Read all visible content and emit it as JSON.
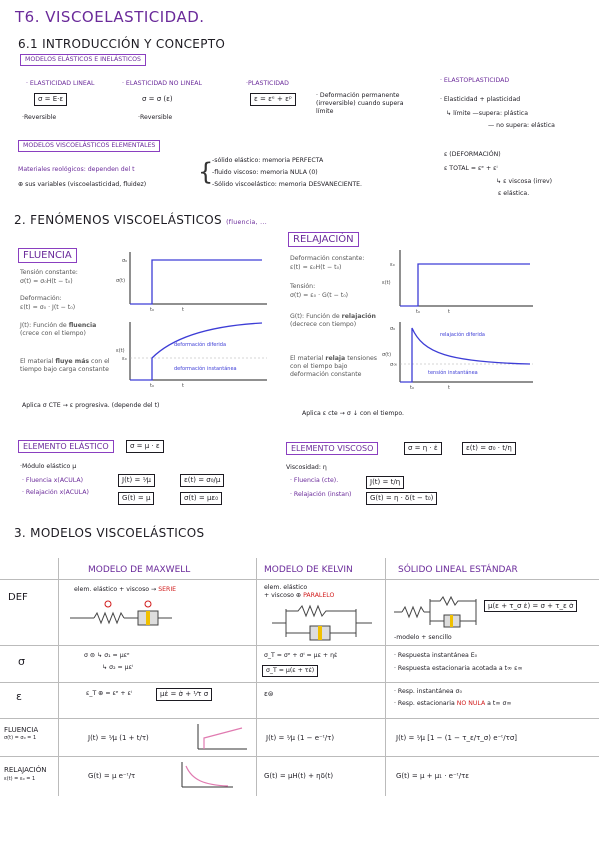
{
  "title": "T6. VISCOELASTICIDAD.",
  "s61": {
    "title": "6.1 INTRODUCCIÓN Y CONCEPTO",
    "tag": "MODELOS ELÁSTICOS E INELÁSTICOS"
  },
  "models": [
    {
      "name": "· ELASTICIDAD LINEAL",
      "formula": "σ = E·ε",
      "note": "·Reversible"
    },
    {
      "name": "· ELASTICIDAD NO LINEAL",
      "formula": "σ = σ (ε)",
      "note": "·Reversible"
    },
    {
      "name": "·PLASTICIDAD",
      "formula": "ε = εᵉ + εᵖ",
      "note": "· Deformación permanente (irreversible) cuando supera límite"
    },
    {
      "name": "· ELASTOPLASTICIDAD",
      "line1": "· Elasticidad + plasticidad",
      "line2": "↳ límite —supera: plástica",
      "line3": "— no supera: elástica"
    }
  ],
  "visco_tag": "MODELOS VISCOELÁSTICOS ELEMENTALES",
  "materials": {
    "line1": "Materiales reológicos: dependen del t",
    "line2": "⊕ sus variables (viscoelasticidad, fluidez)"
  },
  "solids": [
    "-sólido elástico: memoria PERFECTA",
    "-fluido viscoso: memoria NULA (0)",
    "-Sólido viscoelástico: memoria DESVANECIENTE."
  ],
  "deform": {
    "l1": "ε (DEFORMACIÓN)",
    "l2": "ε TOTAL = εᵉ + εⁱ",
    "l3": "↳ ε viscosa (irrev)",
    "l4": "ε elástica."
  },
  "s2": {
    "title": "2. FENÓMENOS VISCOELÁSTICOS",
    "sub": "(fluencia, ..."
  },
  "fluencia": {
    "tag": "FLUENCIA",
    "t1": "Tensión constante:",
    "f1": "σ(t) = σ₀H(t − t₀)",
    "t2": "Deformación:",
    "f2": "ε(t) = σ₀ · J(t − t₀)",
    "t3a": "J(t): Función de ",
    "t3b": "fluencia",
    "t3c": "(crece con el tiempo)",
    "t4a": "El material ",
    "t4b": "fluye más",
    "t4c": " con el tiempo bajo carga constante",
    "c1": {
      "ylabel": "σ(t)",
      "y0": "σ₀",
      "x0": "t₀",
      "x": "t"
    },
    "c2": {
      "ylabel": "ε(t)",
      "y0": "ε₀",
      "x0": "t₀",
      "x": "t",
      "l1": "deformación diferida",
      "l2": "deformación instantánea"
    },
    "note": "Aplica σ CTE → ε progresiva. (depende del t)"
  },
  "relajacion": {
    "tag": "RELAJACIÓN",
    "t1": "Deformación constante:",
    "f1": "ε(t) = ε₀H(t − t₀)",
    "t2": "Tensión:",
    "f2": "σ(t) = ε₀ · G(t − t₀)",
    "t3a": "G(t): Función de ",
    "t3b": "relajación",
    "t3c": " (decrece con tiempo)",
    "t4a": "El material ",
    "t4b": "relaja",
    "t4c": " tensiones con el tiempo bajo deformación constante",
    "c1": {
      "ylabel": "ε(t)",
      "y0": "ε₀",
      "x0": "t₀",
      "x": "t"
    },
    "c2": {
      "ylabel": "σ(t)",
      "y0": "σ₀",
      "y1": "σ∞",
      "x0": "t₀",
      "x": "t",
      "l1": "relajación diferida",
      "l2": "tensión instantánea"
    },
    "note": "Aplica ε cte → σ ↓ con el tiempo."
  },
  "elastico": {
    "tag": "ELEMENTO ELÁSTICO",
    "eq": "σ = μ · ε",
    "mod": "·Módulo elástico μ",
    "fl": "· Fluencia",
    "flc": "x(ACULA)",
    "rl": "· Relajación",
    "rlc": "x(ACULA)",
    "j": "J(t) = ¹⁄μ",
    "g": "G(t) = μ",
    "e": "ε(t) = σ₀/μ",
    "s": "σ(t) = με₀"
  },
  "viscoso": {
    "tag": "ELEMENTO VISCOSO",
    "eq": "σ = η · ε̇",
    "eq2": "ε(t) = σ₀ · t/η",
    "vis": "Viscosidad: η",
    "fl": "· Fluencia (cte).",
    "rl": "· Relajación (instan)",
    "j": "J(t) = t/η",
    "g": "G(t) = η · δ(t − t₀)"
  },
  "s3": {
    "title": "3. MODELOS VISCOELÁSTICOS"
  },
  "table": {
    "headers": [
      "MODELO DE MAXWELL",
      "MODELO DE KELVIN",
      "SÓLIDO LINEAL ESTÁNDAR"
    ],
    "rows": [
      "DEF",
      "σ",
      "ε",
      "FLUENCIA",
      "RELAJACIÓN"
    ],
    "row_sub": {
      "fl": "σ(t) = σ₀ = 1",
      "rl": "ε(t) = ε₀ = 1"
    },
    "maxwell": {
      "def1": "elem. elástico + viscoso →",
      "def2": "SERIE",
      "s1": "σ ⊜ ↳ σ₁ = μεᵉ",
      "s2": "↳ σ₂ = μεⁱ",
      "e1": "ε_T ⊕ = εᵉ + εⁱ",
      "e2": "με̇ = σ̇ + ¹⁄τ σ",
      "f": "J(t) = ¹⁄μ (1 + t/τ)",
      "r": "G(t) = μ e⁻ᵗ/τ"
    },
    "kelvin": {
      "def1": "elem. elástico",
      "def2": "+ viscoso ⊕",
      "def3": "PARALELO",
      "s1": "σ_T = σᵉ + σⁱ = με + ηε̇",
      "s2": "σ_T = μ(ε + τε̇)",
      "e1": "ε⊜",
      "f": "J(t) = ¹⁄μ (1 − e⁻ᵗ/τ)",
      "r": "G(t) = μH(t) + ηδ(t)"
    },
    "sle": {
      "def": "μ(ε + τ_σ ε̇) = σ + τ_ε σ̇",
      "def2": "-modelo + sencillo",
      "s1": "· Respuesta instantánea E₀",
      "s2": "· Respuesta estacionaria acotada a t∞ ε∞",
      "e1": "· Resp. instantánea σ₀",
      "e2": "· Resp. estacionaria",
      "e3": "NO NULA",
      "e4": " a t∞ σ∞",
      "f": "J(t) = ¹⁄μ [1 − (1 − τ_ε/τ_σ) e⁻ᵗ/τσ]",
      "r": "G(t) = μ + μ₁ · e⁻ᵗ/τε"
    }
  }
}
